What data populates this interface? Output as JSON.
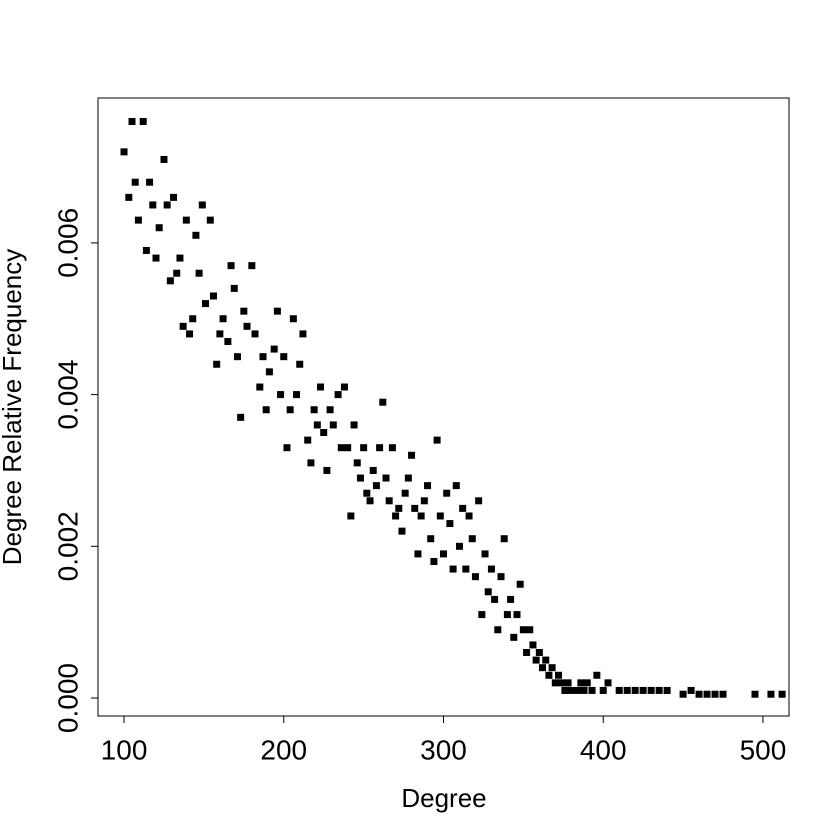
{
  "chart_data": {
    "type": "scatter",
    "xlabel": "Degree",
    "ylabel": "Degree Relative Frequency",
    "color": "#000000",
    "x": [
      100,
      103,
      105,
      107,
      109,
      112,
      114,
      116,
      118,
      120,
      122,
      125,
      127,
      129,
      131,
      133,
      135,
      137,
      139,
      141,
      143,
      145,
      147,
      149,
      151,
      154,
      156,
      158,
      160,
      162,
      165,
      167,
      169,
      171,
      173,
      175,
      177,
      180,
      182,
      185,
      187,
      189,
      191,
      194,
      196,
      198,
      200,
      202,
      204,
      206,
      208,
      210,
      212,
      215,
      217,
      219,
      221,
      223,
      225,
      227,
      229,
      231,
      234,
      236,
      238,
      240,
      242,
      244,
      246,
      248,
      250,
      252,
      254,
      256,
      258,
      260,
      262,
      264,
      266,
      268,
      270,
      272,
      274,
      276,
      278,
      280,
      282,
      284,
      286,
      288,
      290,
      292,
      294,
      296,
      298,
      300,
      302,
      304,
      306,
      308,
      310,
      312,
      314,
      316,
      318,
      320,
      322,
      324,
      326,
      328,
      330,
      332,
      334,
      336,
      338,
      340,
      342,
      344,
      346,
      348,
      350,
      352,
      354,
      356,
      358,
      360,
      362,
      364,
      366,
      368,
      370,
      372,
      374,
      376,
      378,
      380,
      384,
      386,
      388,
      390,
      393,
      396,
      400,
      403,
      410,
      415,
      420,
      425,
      430,
      435,
      440,
      450,
      455,
      460,
      465,
      470,
      475,
      495,
      505,
      512
    ],
    "values": [
      0.0072,
      0.0066,
      0.0076,
      0.0068,
      0.0063,
      0.0076,
      0.0059,
      0.0068,
      0.0065,
      0.0058,
      0.0062,
      0.0071,
      0.0065,
      0.0055,
      0.0066,
      0.0056,
      0.0058,
      0.0049,
      0.0063,
      0.0048,
      0.005,
      0.0061,
      0.0056,
      0.0065,
      0.0052,
      0.0063,
      0.0053,
      0.0044,
      0.0048,
      0.005,
      0.0047,
      0.0057,
      0.0054,
      0.0045,
      0.0037,
      0.0051,
      0.0049,
      0.0057,
      0.0048,
      0.0041,
      0.0045,
      0.0038,
      0.0043,
      0.0046,
      0.0051,
      0.004,
      0.0045,
      0.0033,
      0.0038,
      0.005,
      0.004,
      0.0044,
      0.0048,
      0.0034,
      0.0031,
      0.0038,
      0.0036,
      0.0041,
      0.0035,
      0.003,
      0.0038,
      0.0036,
      0.004,
      0.0033,
      0.0041,
      0.0033,
      0.0024,
      0.0036,
      0.0031,
      0.0029,
      0.0033,
      0.0027,
      0.0026,
      0.003,
      0.0028,
      0.0033,
      0.0039,
      0.0029,
      0.0026,
      0.0033,
      0.0024,
      0.0025,
      0.0022,
      0.0027,
      0.0029,
      0.0032,
      0.0025,
      0.0019,
      0.0024,
      0.0026,
      0.0028,
      0.0021,
      0.0018,
      0.0034,
      0.0024,
      0.0019,
      0.0027,
      0.0023,
      0.0017,
      0.0028,
      0.002,
      0.0025,
      0.0017,
      0.0024,
      0.0021,
      0.0016,
      0.0026,
      0.0011,
      0.0019,
      0.0014,
      0.0017,
      0.0013,
      0.0009,
      0.0016,
      0.0021,
      0.0011,
      0.0013,
      0.0008,
      0.0011,
      0.0015,
      0.0009,
      0.0006,
      0.0009,
      0.0007,
      0.0005,
      0.0006,
      0.0004,
      0.0005,
      0.0003,
      0.0004,
      0.0002,
      0.0003,
      0.0002,
      0.0001,
      0.0002,
      0.0001,
      0.0001,
      0.0002,
      0.0001,
      0.0002,
      0.0001,
      0.0003,
      0.0001,
      0.0002,
      0.0001,
      0.0001,
      0.0001,
      0.0001,
      0.0001,
      0.0001,
      0.0001,
      5e-05,
      0.0001,
      5e-05,
      5e-05,
      5e-05,
      5e-05,
      5e-05,
      5e-05,
      5e-05
    ],
    "xlim": [
      83.7,
      516.3
    ],
    "ylim": [
      -0.000237,
      0.00791
    ],
    "xticks": [
      100,
      200,
      300,
      400,
      500
    ],
    "yticks": [
      {
        "value": 0,
        "label": "0.000"
      },
      {
        "value": 0.002,
        "label": "0.002"
      },
      {
        "value": 0.004,
        "label": "0.004"
      },
      {
        "value": 0.006,
        "label": "0.006"
      }
    ]
  }
}
